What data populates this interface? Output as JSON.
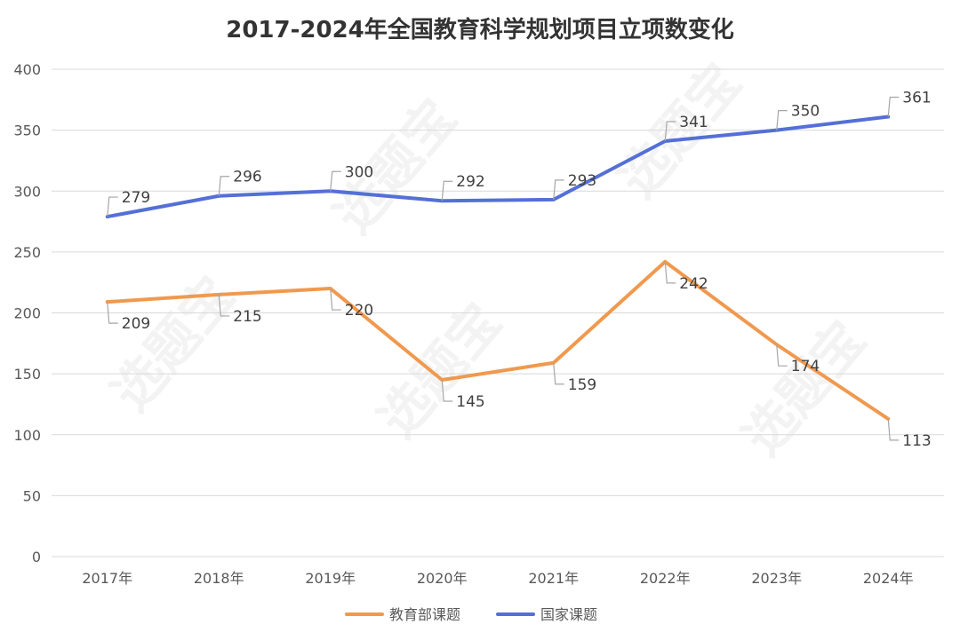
{
  "chart_data": {
    "type": "line",
    "title": "2017-2024年全国教育科学规划项目立项数变化",
    "categories": [
      "2017年",
      "2018年",
      "2019年",
      "2020年",
      "2021年",
      "2022年",
      "2023年",
      "2024年"
    ],
    "series": [
      {
        "name": "教育部课题",
        "color": "#F0994E",
        "values": [
          209,
          215,
          220,
          145,
          159,
          242,
          174,
          113
        ],
        "label_position": "below"
      },
      {
        "name": "国家课题",
        "color": "#5470D6",
        "values": [
          279,
          296,
          300,
          292,
          293,
          341,
          350,
          361
        ],
        "label_position": "above"
      }
    ],
    "xlabel": "",
    "ylabel": "",
    "ylim": [
      0,
      400
    ],
    "yticks": [
      0,
      50,
      100,
      150,
      200,
      250,
      300,
      350,
      400
    ],
    "grid": true,
    "legend": "bottom-center",
    "gridline_color": "#d9d9d9"
  },
  "watermark": {
    "text": "选题宝"
  }
}
